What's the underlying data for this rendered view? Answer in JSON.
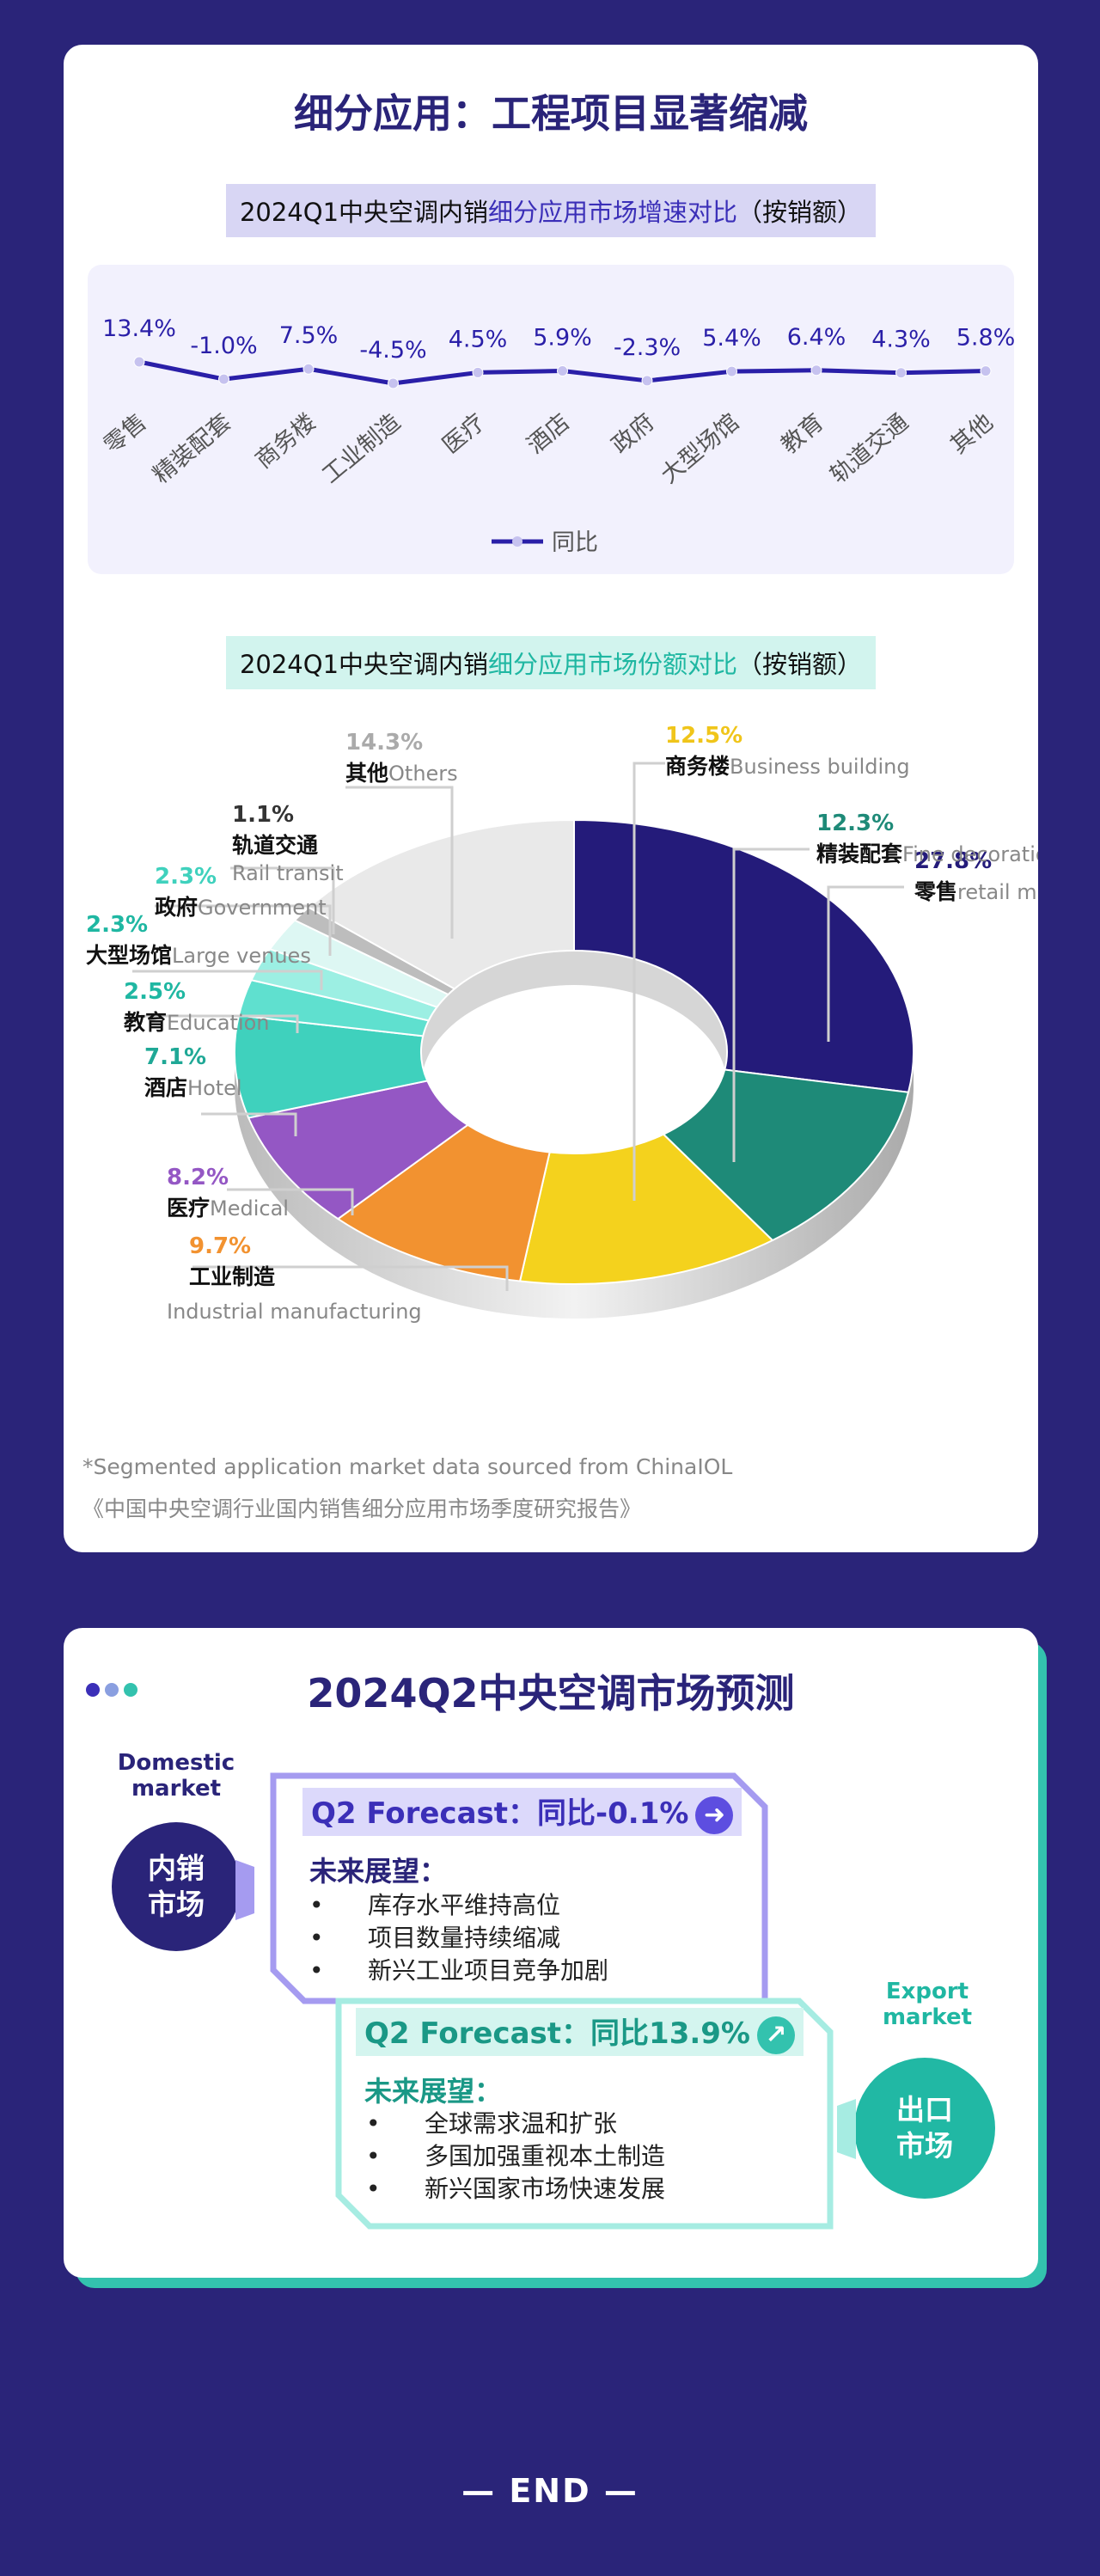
{
  "section1": {
    "title": "细分应用：工程项目显著缩减",
    "line_title_pre": "2024Q1中央空调内销",
    "line_title_hl": "细分应用市场增速对比",
    "line_title_post": "（按销额）",
    "pie_title_pre": "2024Q1中央空调内销",
    "pie_title_hl": "细分应用市场份额对比",
    "pie_title_post": "（按销额）",
    "note1": "*Segmented application market data sourced from ChinaIOL",
    "note2": "《中国中央空调行业国内销售细分应用市场季度研究报告》"
  },
  "chart_data": [
    {
      "type": "line",
      "categories": [
        "零售",
        "精装配套",
        "商务楼",
        "工业制造",
        "医疗",
        "酒店",
        "政府",
        "大型场馆",
        "教育",
        "轨道交通",
        "其他"
      ],
      "series": [
        {
          "name": "同比",
          "values": [
            13.4,
            -1.0,
            7.5,
            -4.5,
            4.5,
            5.9,
            -2.3,
            5.4,
            6.4,
            4.3,
            5.8
          ],
          "labels": [
            "13.4%",
            "-1.0%",
            "7.5%",
            "-4.5%",
            "4.5%",
            "5.9%",
            "-2.3%",
            "5.4%",
            "6.4%",
            "4.3%",
            "5.8%"
          ]
        }
      ],
      "legend": "bottom-center",
      "color": "#2a1fa8"
    },
    {
      "type": "pie",
      "slices": [
        {
          "name": "零售",
          "en": "retail market",
          "value": 27.8,
          "label": "27.8%",
          "color": "#241b7a",
          "label_color": "#241b7a"
        },
        {
          "name": "精装配套",
          "en": "Fine decoration",
          "value": 12.3,
          "label": "12.3%",
          "color": "#1e8a78",
          "label_color": "#1e8a78"
        },
        {
          "name": "商务楼",
          "en": "Business building",
          "value": 12.5,
          "label": "12.5%",
          "color": "#f4d21d",
          "label_color": "#f0c51a"
        },
        {
          "name": "工业制造",
          "en": "Industrial manufacturing",
          "value": 9.7,
          "label": "9.7%",
          "color": "#f29230",
          "label_color": "#f29230"
        },
        {
          "name": "医疗",
          "en": "Medical",
          "value": 8.2,
          "label": "8.2%",
          "color": "#9457c4",
          "label_color": "#9457c4"
        },
        {
          "name": "酒店",
          "en": "Hotel",
          "value": 7.1,
          "label": "7.1%",
          "color": "#3fd1bd",
          "label_color": "#1fa896"
        },
        {
          "name": "教育",
          "en": "Education",
          "value": 2.5,
          "label": "2.5%",
          "color": "#5fe0cf",
          "label_color": "#1fb7a2"
        },
        {
          "name": "大型场馆",
          "en": "Large venues",
          "value": 2.3,
          "label": "2.3%",
          "color": "#9cefe3",
          "label_color": "#1fb7a2"
        },
        {
          "name": "政府",
          "en": "Government",
          "value": 2.3,
          "label": "2.3%",
          "color": "#ddf7f3",
          "label_color": "#3fd1bd"
        },
        {
          "name": "轨道交通",
          "en": "Rail transit",
          "value": 1.1,
          "label": "1.1%",
          "color": "#bdbdbd",
          "label_color": "#333333"
        },
        {
          "name": "其他",
          "en": "Others",
          "value": 14.3,
          "label": "14.3%",
          "color": "#e9e9e9",
          "label_color": "#aaaaaa"
        }
      ]
    }
  ],
  "section2": {
    "title": "2024Q2中央空调市场预测",
    "domestic": {
      "label": "Domestic market",
      "circle": "内销市场",
      "forecast_label": "Q2 Forecast：",
      "forecast_value": "同比-0.1%",
      "outlook": "未来展望：",
      "items": [
        "库存水平维持高位",
        "项目数量持续缩减",
        "新兴工业项目竞争加剧"
      ],
      "arrow": "➜"
    },
    "export": {
      "label": "Export market",
      "circle": "出口市场",
      "forecast_label": "Q2 Forecast：",
      "forecast_value": "同比13.9%",
      "outlook": "未来展望：",
      "items": [
        "全球需求温和扩张",
        "多国加强重视本土制造",
        "新兴国家市场快速发展"
      ],
      "arrow": "↗"
    },
    "dot_colors": [
      "#3b2fb8",
      "#8a9fe0",
      "#33c2ae"
    ]
  },
  "end": "— END —"
}
